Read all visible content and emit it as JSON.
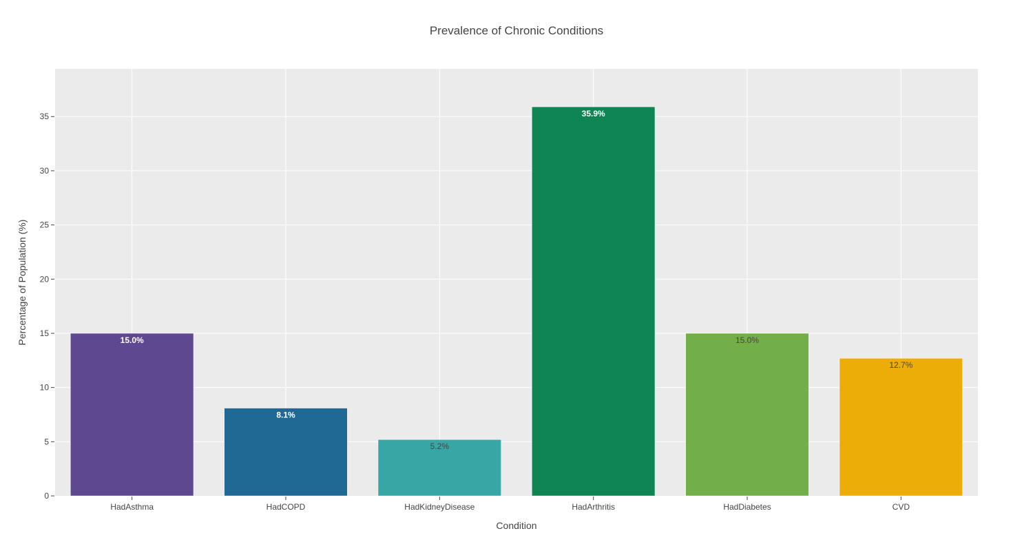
{
  "chart_data": {
    "type": "bar",
    "title": "Prevalence of Chronic Conditions",
    "xlabel": "Condition",
    "ylabel": "Percentage of Population (%)",
    "categories": [
      "HadAsthma",
      "HadCOPD",
      "HadKidneyDisease",
      "HadArthritis",
      "HadDiabetes",
      "CVD"
    ],
    "values": [
      15.0,
      8.1,
      5.2,
      35.9,
      15.0,
      12.7
    ],
    "data_labels": [
      "15.0%",
      "8.1%",
      "5.2%",
      "35.9%",
      "15.0%",
      "12.7%"
    ],
    "bar_colors": [
      "#5e4890",
      "#1f6994",
      "#38a6a5",
      "#0f8554",
      "#73af48",
      "#edad08"
    ],
    "label_colors": [
      "#ffffff",
      "#ffffff",
      "#444444",
      "#ffffff",
      "#444444",
      "#444444"
    ],
    "label_bold": [
      true,
      true,
      false,
      true,
      false,
      false
    ],
    "ylim": [
      0,
      39.4
    ],
    "yticks": [
      0,
      5,
      10,
      15,
      20,
      25,
      30,
      35
    ],
    "grid": true,
    "plot_background": "#ebebeb",
    "grid_color": "#ffffff"
  }
}
